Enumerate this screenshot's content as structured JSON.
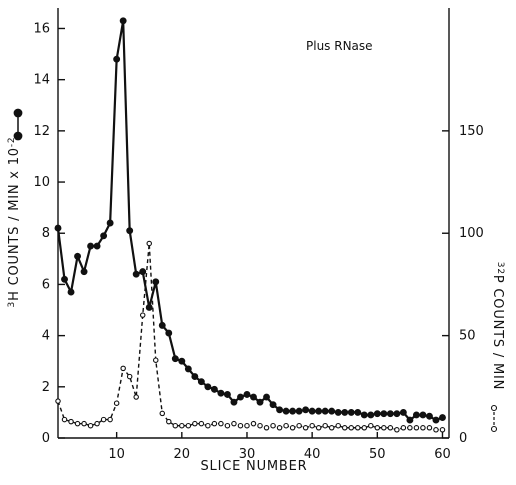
{
  "chart_data": {
    "type": "line",
    "annotation": "Plus RNase",
    "xlabel": "SLICE NUMBER",
    "ylabel_left": "3H COUNTS / MIN x 10-2",
    "ylabel_right": "32P COUNTS / MIN",
    "xlim": [
      1,
      61
    ],
    "ylim_left": [
      0,
      16.8
    ],
    "ylim_right": [
      0,
      210
    ],
    "x_ticks": [
      10,
      20,
      30,
      40,
      50,
      60
    ],
    "y_left_ticks": [
      0,
      2,
      4,
      6,
      8,
      10,
      12,
      14,
      16
    ],
    "y_right_ticks": [
      0,
      50,
      100,
      150
    ],
    "grid": false,
    "series": [
      {
        "axis": "left",
        "style": "solid-filled",
        "x": [
          1,
          2,
          3,
          4,
          5,
          6,
          7,
          8,
          9,
          10,
          11,
          12,
          13,
          14,
          15,
          16,
          17,
          18,
          19,
          20,
          21,
          22,
          23,
          24,
          25,
          26,
          27,
          28,
          29,
          30,
          31,
          32,
          33,
          34,
          35,
          36,
          37,
          38,
          39,
          40,
          41,
          42,
          43,
          44,
          45,
          46,
          47,
          48,
          49,
          50,
          51,
          52,
          53,
          54,
          55,
          56,
          57,
          58,
          59,
          60
        ],
        "values": [
          8.2,
          6.2,
          5.7,
          7.1,
          6.5,
          7.5,
          7.5,
          7.9,
          8.4,
          14.8,
          16.3,
          8.1,
          6.4,
          6.5,
          5.1,
          6.1,
          4.4,
          4.1,
          3.1,
          3.0,
          2.7,
          2.4,
          2.2,
          2.0,
          1.9,
          1.75,
          1.7,
          1.4,
          1.6,
          1.7,
          1.6,
          1.4,
          1.6,
          1.3,
          1.1,
          1.05,
          1.05,
          1.05,
          1.1,
          1.05,
          1.05,
          1.05,
          1.05,
          1.0,
          1.0,
          1.0,
          1.0,
          0.9,
          0.9,
          0.95,
          0.95,
          0.95,
          0.95,
          1.0,
          0.7,
          0.9,
          0.9,
          0.85,
          0.7,
          0.8
        ]
      },
      {
        "axis": "right",
        "style": "dashed-open",
        "x": [
          1,
          2,
          3,
          4,
          5,
          6,
          7,
          8,
          9,
          10,
          11,
          12,
          13,
          14,
          15,
          16,
          17,
          18,
          19,
          20,
          21,
          22,
          23,
          24,
          25,
          26,
          27,
          28,
          29,
          30,
          31,
          32,
          33,
          34,
          35,
          36,
          37,
          38,
          39,
          40,
          41,
          42,
          43,
          44,
          45,
          46,
          47,
          48,
          49,
          50,
          51,
          52,
          53,
          54,
          55,
          56,
          57,
          58,
          59,
          60
        ],
        "values": [
          18,
          9,
          8,
          7,
          7,
          6,
          7,
          9,
          9,
          17,
          34,
          30,
          20,
          60,
          95,
          38,
          12,
          8,
          6,
          6,
          6,
          7,
          7,
          6,
          7,
          7,
          6,
          7,
          6,
          6,
          7,
          6,
          5,
          6,
          5,
          6,
          5,
          6,
          5,
          6,
          5,
          6,
          5,
          6,
          5,
          5,
          5,
          5,
          6,
          5,
          5,
          5,
          4,
          5,
          5,
          5,
          5,
          5,
          4,
          4
        ]
      }
    ]
  }
}
